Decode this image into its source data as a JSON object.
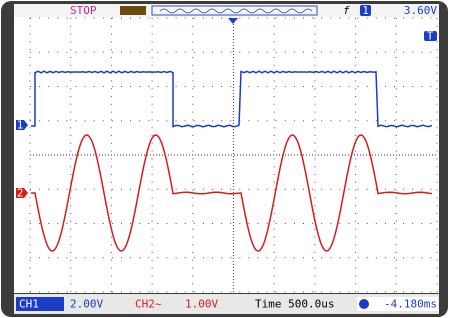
{
  "status": "STOP",
  "trigger": {
    "channel": "1",
    "level": "3.60V"
  },
  "markers": {
    "ch1": "1",
    "ch2": "2",
    "trigger": "T"
  },
  "bottom": {
    "ch1": {
      "label": "CH1",
      "scale": "2.00V"
    },
    "ch2": {
      "label": "CH2~",
      "scale": "1.00V"
    },
    "time": "Time 500.0us",
    "offset": "-4.180ms"
  }
}
